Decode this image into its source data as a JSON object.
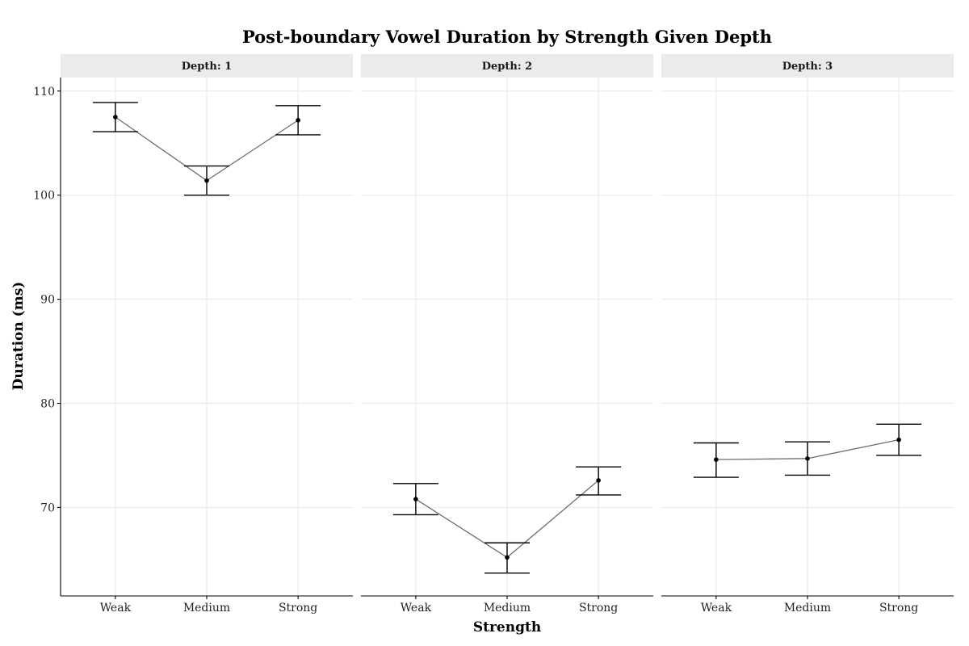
{
  "chart_data": {
    "type": "line",
    "title": "Post-boundary Vowel Duration by Strength Given Depth",
    "xlabel": "Strength",
    "ylabel": "Duration (ms)",
    "categories": [
      "Weak",
      "Medium",
      "Strong"
    ],
    "ylim": [
      61.5,
      111.3
    ],
    "yticks": [
      70,
      80,
      90,
      100,
      110
    ],
    "grid": true,
    "error_bars": true,
    "colors": {
      "line": "#6e6e6e",
      "point": "#000000",
      "errorbar": "#000000",
      "strip": "#ebebeb",
      "grid": "#ebebeb"
    },
    "panels": [
      {
        "strip_label": "Depth: 1",
        "values": [
          107.5,
          101.4,
          107.2
        ],
        "error_low": [
          106.1,
          100.0,
          105.8
        ],
        "error_high": [
          108.9,
          102.8,
          108.6
        ]
      },
      {
        "strip_label": "Depth: 2",
        "values": [
          70.8,
          65.2,
          72.6
        ],
        "error_low": [
          69.3,
          63.7,
          71.2
        ],
        "error_high": [
          72.3,
          66.6,
          73.9
        ]
      },
      {
        "strip_label": "Depth: 3",
        "values": [
          74.6,
          74.7,
          76.5
        ],
        "error_low": [
          72.9,
          73.1,
          75.0
        ],
        "error_high": [
          76.2,
          76.3,
          78.0
        ]
      }
    ]
  }
}
